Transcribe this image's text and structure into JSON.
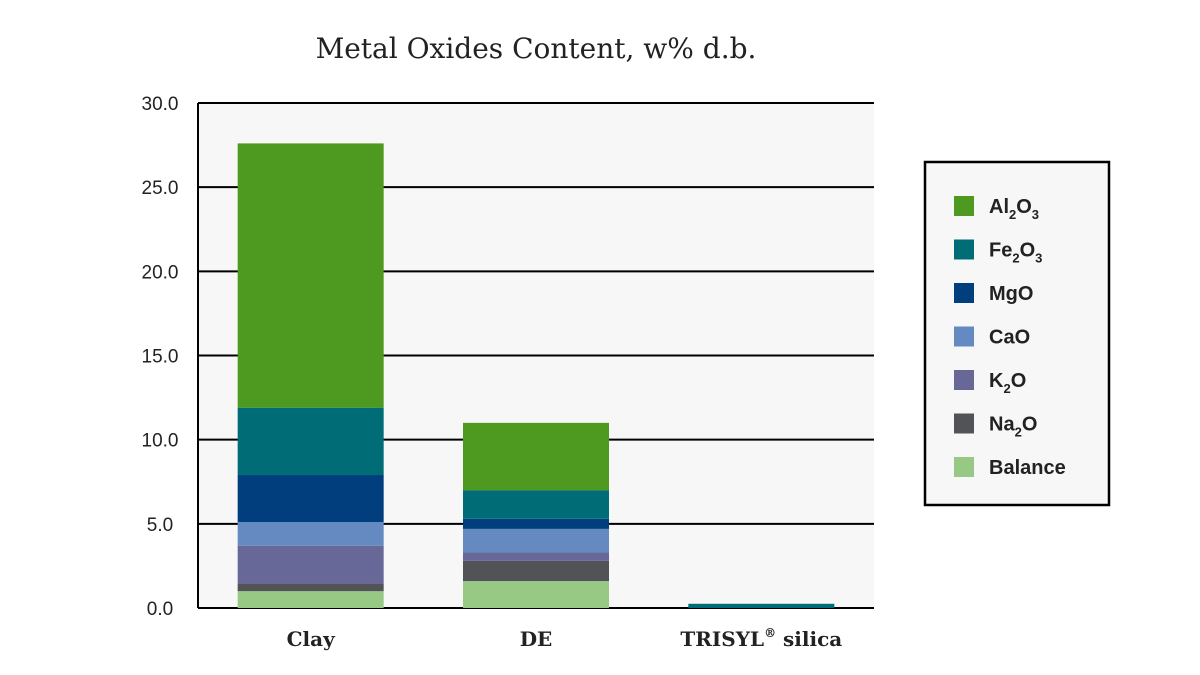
{
  "chart_data": {
    "type": "bar",
    "stacked": true,
    "title": "Metal Oxides Content, w% d.b.",
    "xlabel": "",
    "ylabel": "",
    "ylim": [
      0,
      30
    ],
    "yticks": [
      "0.0",
      "5.0",
      "10.0",
      "15.0",
      "20.0",
      "25.0",
      "30.0"
    ],
    "grid": true,
    "legend_position": "right",
    "categories": [
      {
        "base": "Clay",
        "sup": "",
        "rest": ""
      },
      {
        "base": "DE",
        "sup": "",
        "rest": ""
      },
      {
        "base": "TRISYL",
        "sup": "®",
        "rest": " silica"
      }
    ],
    "series": [
      {
        "name": {
          "parts": [
            {
              "t": "Balance"
            }
          ]
        },
        "color": "#97c884",
        "values": [
          1.0,
          1.6,
          0.0
        ]
      },
      {
        "name": {
          "parts": [
            {
              "t": "Na"
            },
            {
              "t": "2",
              "sub": true
            },
            {
              "t": "O"
            }
          ]
        },
        "color": "#515357",
        "values": [
          0.45,
          1.2,
          0.0
        ]
      },
      {
        "name": {
          "parts": [
            {
              "t": "K"
            },
            {
              "t": "2",
              "sub": true
            },
            {
              "t": "O"
            }
          ]
        },
        "color": "#676897",
        "values": [
          2.25,
          0.5,
          0.0
        ]
      },
      {
        "name": {
          "parts": [
            {
              "t": "CaO"
            }
          ]
        },
        "color": "#648ac1",
        "values": [
          1.4,
          1.4,
          0.0
        ]
      },
      {
        "name": {
          "parts": [
            {
              "t": "MgO"
            }
          ]
        },
        "color": "#003e7e",
        "values": [
          2.8,
          0.6,
          0.0
        ]
      },
      {
        "name": {
          "parts": [
            {
              "t": "Fe"
            },
            {
              "t": "2",
              "sub": true
            },
            {
              "t": "O"
            },
            {
              "t": "3",
              "sub": true
            }
          ]
        },
        "color": "#006c75",
        "values": [
          4.0,
          1.7,
          0.25
        ]
      },
      {
        "name": {
          "parts": [
            {
              "t": "Al"
            },
            {
              "t": "2",
              "sub": true
            },
            {
              "t": "O"
            },
            {
              "t": "3",
              "sub": true
            }
          ]
        },
        "color": "#4e9a20",
        "values": [
          15.7,
          4.0,
          0.0
        ]
      }
    ]
  },
  "colors": {
    "plot_background": "#f7f7f7",
    "gridline": "#000000",
    "legend_background": "#f7f7f7"
  }
}
